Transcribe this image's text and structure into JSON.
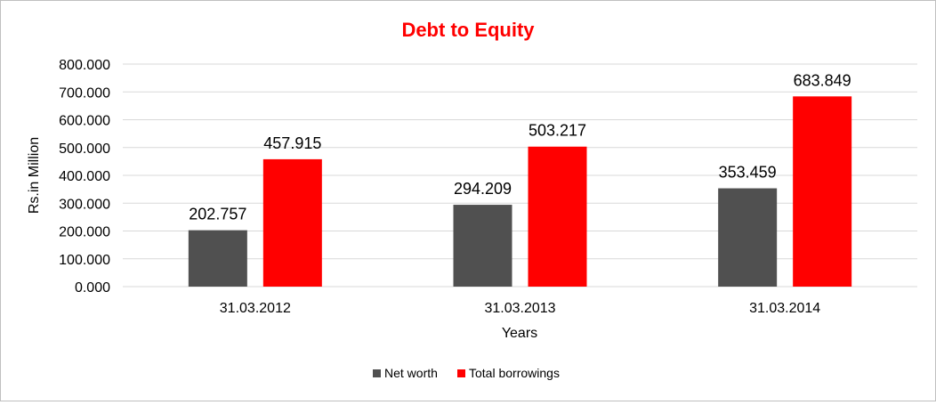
{
  "chart_data": {
    "type": "bar",
    "title": "Debt to Equity",
    "xlabel": "Years",
    "ylabel": "Rs.in Million",
    "categories": [
      "31.03.2012",
      "31.03.2013",
      "31.03.2014"
    ],
    "ylim": [
      0,
      800
    ],
    "yticks": [
      "0.000",
      "100.000",
      "200.000",
      "300.000",
      "400.000",
      "500.000",
      "600.000",
      "700.000",
      "800.000"
    ],
    "grid": true,
    "legend_position": "bottom",
    "series": [
      {
        "name": "Net worth",
        "color": "#505050",
        "values": [
          202.757,
          294.209,
          353.459
        ],
        "labels": [
          "202.757",
          "294.209",
          "353.459"
        ]
      },
      {
        "name": "Total borrowings",
        "color": "#ff0000",
        "values": [
          457.915,
          503.217,
          683.849
        ],
        "labels": [
          "457.915",
          "503.217",
          "683.849"
        ]
      }
    ],
    "title_color": "#ff0000"
  }
}
